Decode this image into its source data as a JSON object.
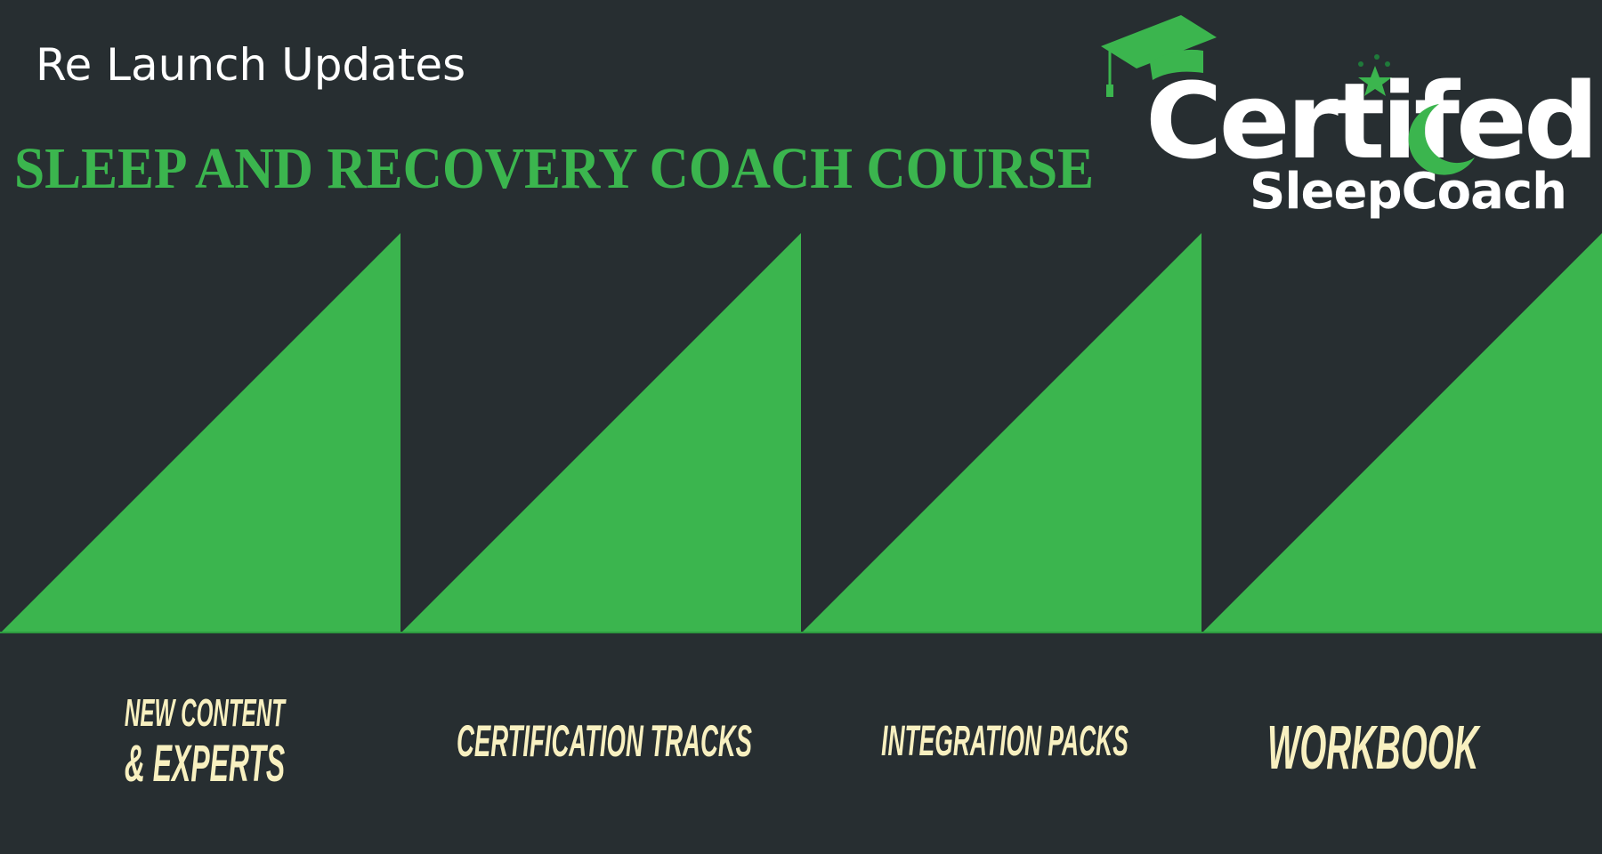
{
  "header": {
    "subtitle": "Re Launch Updates",
    "headline": "SLEEP AND RECOVERY COACH COURSE"
  },
  "logo": {
    "line1": "Certifed",
    "line2": "SleepCoach"
  },
  "features": [
    {
      "line1": "NEW CONTENT",
      "line2": "& EXPERTS"
    },
    {
      "line1": "CERTIFICATION TRACKS"
    },
    {
      "line1": "INTEGRATION PACKS"
    },
    {
      "line1": "WORKBOOK"
    }
  ],
  "colors": {
    "background": "#272e31",
    "accent_green": "#3bb54e",
    "label_cream": "#f8f0c0",
    "text_white": "#ffffff"
  }
}
